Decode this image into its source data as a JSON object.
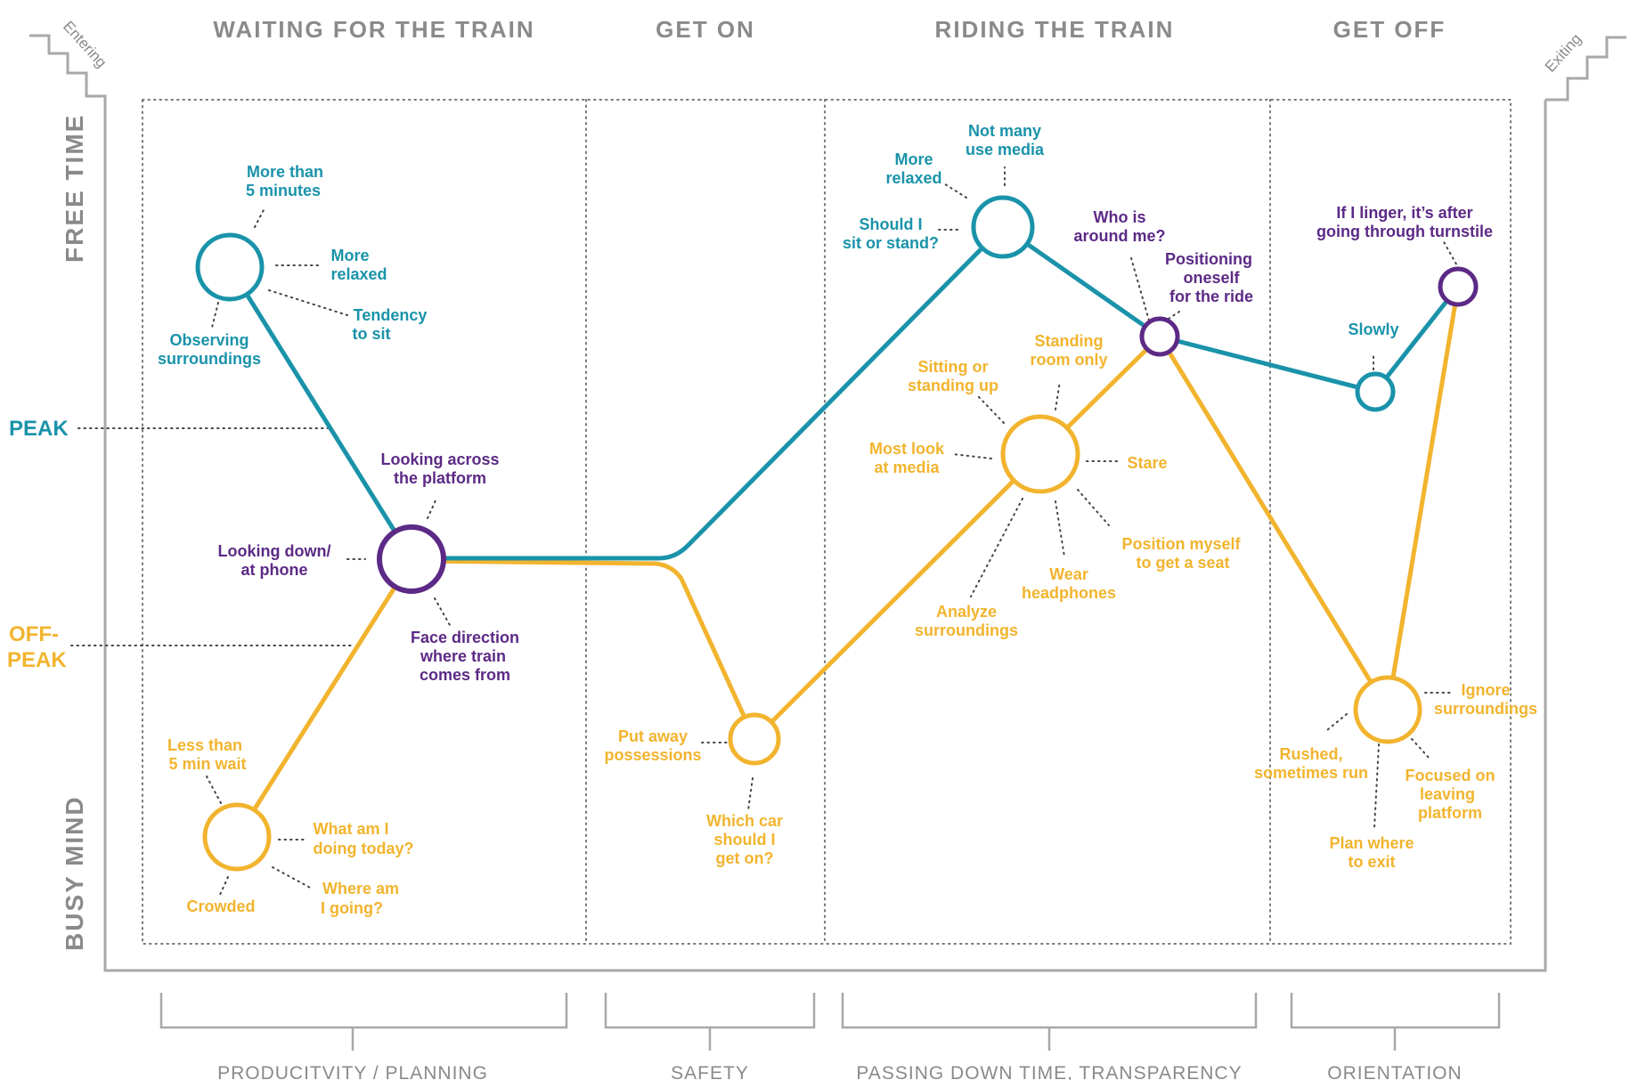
{
  "phases": [
    "WAITING FOR THE TRAIN",
    "GET ON",
    "RIDING THE TRAIN",
    "GET OFF"
  ],
  "axis": {
    "top": "FREE TIME",
    "bottom": "BUSY MIND"
  },
  "stairs": {
    "entering": "Entering",
    "exiting": "Exiting"
  },
  "levels": {
    "peak": "PEAK",
    "offpeak_1": "OFF-",
    "offpeak_2": "PEAK"
  },
  "themes": [
    "PRODUCITVITY / PLANNING",
    "SAFETY",
    "PASSING DOWN TIME, TRANSPARENCY",
    "ORIENTATION"
  ],
  "colors": {
    "peak": "#1a93aa",
    "offpeak": "#f2b42e",
    "shared": "#5c2a86",
    "frame": "#a8a8a8"
  },
  "labels": {
    "w_more5_1": "More than",
    "w_more5_2": "5 minutes",
    "w_relaxed_1": "More",
    "w_relaxed_2": "relaxed",
    "w_sit_1": "Tendency",
    "w_sit_2": "to sit",
    "w_obs_1": "Observing",
    "w_obs_2": "surroundings",
    "w_across_1": "Looking across",
    "w_across_2": "the platform",
    "w_down_1": "Looking down/",
    "w_down_2": "at phone",
    "w_face_1": "Face direction",
    "w_face_2": "where train",
    "w_face_3": "comes from",
    "w_less5_1": "Less than",
    "w_less5_2": "5 min wait",
    "w_today_1": "What am I",
    "w_today_2": "doing today?",
    "w_where_1": "Where am",
    "w_where_2": "I going?",
    "w_crowded": "Crowded",
    "g_putaway_1": "Put away",
    "g_putaway_2": "possessions",
    "g_car_1": "Which car",
    "g_car_2": "should I",
    "g_car_3": "get on?",
    "r_notmany_1": "Not many",
    "r_notmany_2": "use media",
    "r_relaxed_1": "More",
    "r_relaxed_2": "relaxed",
    "r_sit_1": "Should I",
    "r_sit_2": "sit or stand?",
    "r_who_1": "Who is",
    "r_who_2": "around me?",
    "r_pos_1": "Positioning",
    "r_pos_2": "oneself",
    "r_pos_3": "for the ride",
    "r_standing_1": "Standing",
    "r_standing_2": "room only",
    "r_sitting_1": "Sitting or",
    "r_sitting_2": "standing up",
    "r_media_1": "Most look",
    "r_media_2": "at media",
    "r_stare": "Stare",
    "r_seat_1": "Position myself",
    "r_seat_2": "to get a seat",
    "r_wear_1": "Wear",
    "r_wear_2": "headphones",
    "r_analyze_1": "Analyze",
    "r_analyze_2": "surroundings",
    "o_linger_1": "If I linger, it’s after",
    "o_linger_2": "going through turnstile",
    "o_slowly": "Slowly",
    "o_ignore_1": "Ignore",
    "o_ignore_2": "surroundings",
    "o_rushed_1": "Rushed,",
    "o_rushed_2": "sometimes run",
    "o_focused_1": "Focused on",
    "o_focused_2": "leaving",
    "o_focused_3": "platform",
    "o_plan_1": "Plan where",
    "o_plan_2": "to exit"
  }
}
